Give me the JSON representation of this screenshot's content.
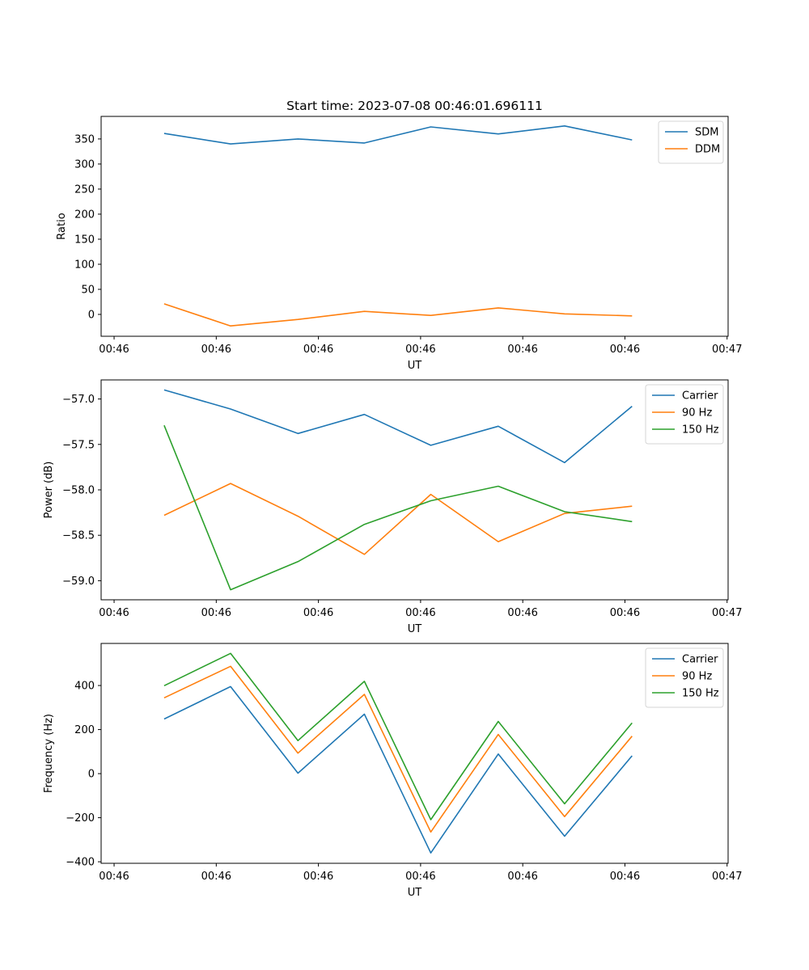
{
  "figure": {
    "title": "Start time: 2023-07-08 00:46:01.696111"
  },
  "chart_data": [
    {
      "type": "line",
      "title": "Start time: 2023-07-08 00:46:01.696111",
      "xlabel": "UT",
      "ylabel": "Ratio",
      "x_unit": "seconds after 00:46:00",
      "x": [
        4.9,
        11.4,
        18.0,
        24.5,
        31.0,
        37.6,
        44.1,
        50.7
      ],
      "xlim": [
        -1.27,
        60.1
      ],
      "xticks": [
        0,
        10,
        20,
        30,
        40,
        50,
        60
      ],
      "xtick_labels": [
        "00:46",
        "00:46",
        "00:46",
        "00:46",
        "00:46",
        "00:46",
        "00:47"
      ],
      "ylim": [
        -43.6,
        395
      ],
      "yticks": [
        0,
        50,
        100,
        150,
        200,
        250,
        300,
        350
      ],
      "ytick_labels": [
        "0",
        "50",
        "100",
        "150",
        "200",
        "250",
        "300",
        "350"
      ],
      "grid": false,
      "legend": "top-right",
      "series": [
        {
          "name": "SDM",
          "color": "#1f77b4",
          "values": [
            361,
            340,
            350,
            342,
            374,
            360,
            376,
            348
          ]
        },
        {
          "name": "DDM",
          "color": "#ff7f0e",
          "values": [
            21,
            -23,
            -10,
            6,
            -2,
            13,
            1,
            -3
          ]
        }
      ]
    },
    {
      "type": "line",
      "title": "",
      "xlabel": "UT",
      "ylabel": "Power (dB)",
      "x_unit": "seconds after 00:46:00",
      "x": [
        4.9,
        11.4,
        18.0,
        24.5,
        31.0,
        37.6,
        44.1,
        50.7
      ],
      "xlim": [
        -1.27,
        60.1
      ],
      "xticks": [
        0,
        10,
        20,
        30,
        40,
        50,
        60
      ],
      "xtick_labels": [
        "00:46",
        "00:46",
        "00:46",
        "00:46",
        "00:46",
        "00:46",
        "00:47"
      ],
      "ylim": [
        -59.21,
        -56.79
      ],
      "yticks": [
        -59.0,
        -58.5,
        -58.0,
        -57.5,
        -57.0
      ],
      "ytick_labels": [
        "−59.0",
        "−58.5",
        "−58.0",
        "−57.5",
        "−57.0"
      ],
      "grid": false,
      "legend": "top-right",
      "series": [
        {
          "name": "Carrier",
          "color": "#1f77b4",
          "values": [
            -56.9,
            -57.11,
            -57.38,
            -57.17,
            -57.51,
            -57.3,
            -57.7,
            -57.08
          ]
        },
        {
          "name": "90 Hz",
          "color": "#ff7f0e",
          "values": [
            -58.28,
            -57.93,
            -58.29,
            -58.71,
            -58.05,
            -58.57,
            -58.26,
            -58.18
          ]
        },
        {
          "name": "150 Hz",
          "color": "#2ca02c",
          "values": [
            -57.29,
            -59.1,
            -58.79,
            -58.38,
            -58.12,
            -57.96,
            -58.24,
            -58.35
          ]
        }
      ]
    },
    {
      "type": "line",
      "title": "",
      "xlabel": "UT",
      "ylabel": "Frequency (Hz)",
      "x_unit": "seconds after 00:46:00",
      "x": [
        4.9,
        11.4,
        18.0,
        24.5,
        31.0,
        37.6,
        44.1,
        50.7
      ],
      "xlim": [
        -1.27,
        60.1
      ],
      "xticks": [
        0,
        10,
        20,
        30,
        40,
        50,
        60
      ],
      "xtick_labels": [
        "00:46",
        "00:46",
        "00:46",
        "00:46",
        "00:46",
        "00:46",
        "00:47"
      ],
      "ylim": [
        -407,
        591
      ],
      "yticks": [
        -400,
        -200,
        0,
        200,
        400
      ],
      "ytick_labels": [
        "−400",
        "−200",
        "0",
        "200",
        "400"
      ],
      "grid": false,
      "legend": "top-right",
      "series": [
        {
          "name": "Carrier",
          "color": "#1f77b4",
          "values": [
            248,
            395,
            2,
            270,
            -360,
            89,
            -284,
            81
          ]
        },
        {
          "name": "90 Hz",
          "color": "#ff7f0e",
          "values": [
            344,
            487,
            93,
            360,
            -265,
            178,
            -195,
            170
          ]
        },
        {
          "name": "150 Hz",
          "color": "#2ca02c",
          "values": [
            399,
            546,
            150,
            419,
            -209,
            237,
            -137,
            230
          ]
        }
      ]
    }
  ]
}
